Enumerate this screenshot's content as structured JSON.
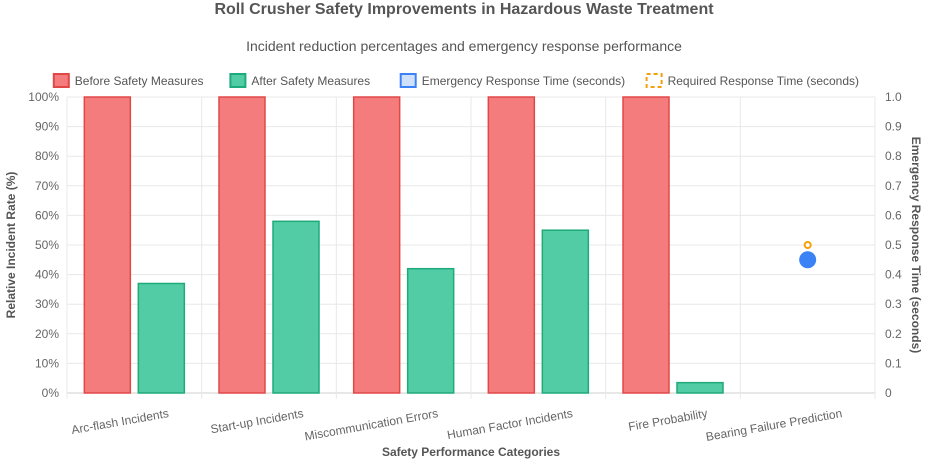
{
  "chart_data": {
    "type": "bar",
    "title": "Roll Crusher Safety Improvements in Hazardous Waste Treatment",
    "subtitle": "Incident reduction percentages and emergency response performance",
    "xlabel": "Safety Performance Categories",
    "ylabel": "Relative Incident Rate (%)",
    "y2label": "Emergency Response Time (seconds)",
    "categories": [
      "Arc-flash Incidents",
      "Start-up Incidents",
      "Miscommunication Errors",
      "Human Factor Incidents",
      "Fire Probability",
      "Bearing Failure Prediction"
    ],
    "ylim": [
      0,
      100
    ],
    "y2lim": [
      0,
      1
    ],
    "y_ticks": [
      "0%",
      "10%",
      "20%",
      "30%",
      "40%",
      "50%",
      "60%",
      "70%",
      "80%",
      "90%",
      "100%"
    ],
    "y2_ticks": [
      "0",
      "0.1",
      "0.2",
      "0.3",
      "0.4",
      "0.5",
      "0.6",
      "0.7",
      "0.8",
      "0.9",
      "1.0"
    ],
    "series": [
      {
        "name": "Before Safety Measures",
        "kind": "bar",
        "axis": "left",
        "values": [
          100,
          100,
          100,
          100,
          100,
          null
        ],
        "color": "#f47c7c",
        "border": "#e04848"
      },
      {
        "name": "After Safety Measures",
        "kind": "bar",
        "axis": "left",
        "values": [
          37,
          58,
          42,
          55,
          3.5,
          null
        ],
        "color": "#52cca4",
        "border": "#1faa7c"
      },
      {
        "name": "Emergency Response Time (seconds)",
        "kind": "point",
        "axis": "right",
        "values": [
          null,
          null,
          null,
          null,
          null,
          0.45
        ],
        "color": "#3b82f6",
        "border": "#3b82f6"
      },
      {
        "name": "Required Response Time (seconds)",
        "kind": "point",
        "axis": "right",
        "values": [
          null,
          null,
          null,
          null,
          null,
          0.5
        ],
        "color": "#f59e0b",
        "border": "#f59e0b"
      }
    ],
    "legend_position": "top",
    "grid": true
  }
}
